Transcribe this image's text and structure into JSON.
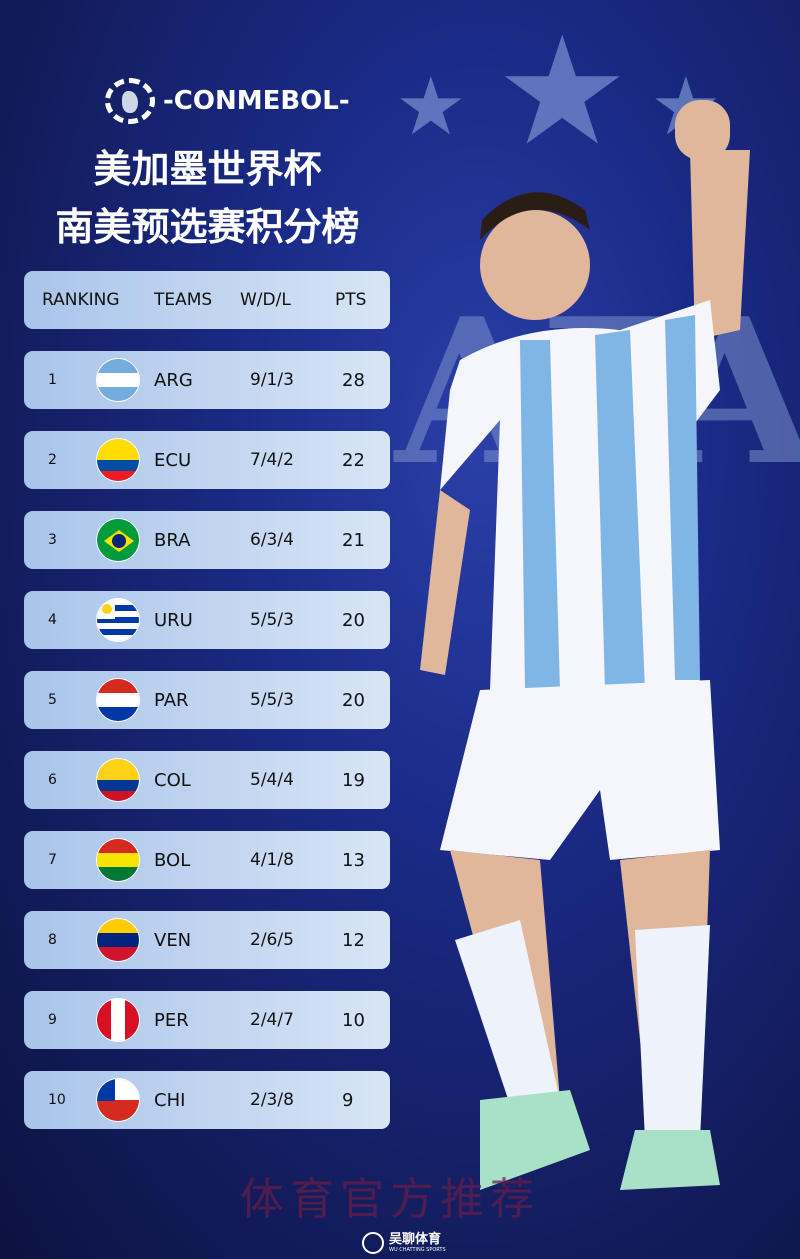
{
  "logo": {
    "text": "-CONMEBOL-"
  },
  "title": {
    "line1": "美加墨世界杯",
    "line2": "南美预选赛积分榜"
  },
  "header": {
    "ranking": "RANKING",
    "teams": "TEAMS",
    "wdl": "W/D/L",
    "pts": "PTS"
  },
  "rows": [
    {
      "rank": "1",
      "team": "ARG",
      "wdl": "9/1/3",
      "pts": "28",
      "flag": [
        "#74acdf",
        "#ffffff",
        "#74acdf"
      ]
    },
    {
      "rank": "2",
      "team": "ECU",
      "wdl": "7/4/2",
      "pts": "22",
      "flag": [
        "#ffdd00",
        "#ffdd00",
        "#034ea2",
        "#ed1c24"
      ]
    },
    {
      "rank": "3",
      "team": "BRA",
      "wdl": "6/3/4",
      "pts": "21",
      "flag": [
        "#009c3b"
      ]
    },
    {
      "rank": "4",
      "team": "URU",
      "wdl": "5/5/3",
      "pts": "20",
      "flag": [
        "#ffffff",
        "#0038a8",
        "#ffffff",
        "#0038a8",
        "#ffffff",
        "#0038a8",
        "#ffffff"
      ]
    },
    {
      "rank": "5",
      "team": "PAR",
      "wdl": "5/5/3",
      "pts": "20",
      "flag": [
        "#d52b1e",
        "#ffffff",
        "#0038a8"
      ]
    },
    {
      "rank": "6",
      "team": "COL",
      "wdl": "5/4/4",
      "pts": "19",
      "flag": [
        "#fcd116",
        "#fcd116",
        "#003893",
        "#ce1126"
      ]
    },
    {
      "rank": "7",
      "team": "BOL",
      "wdl": "4/1/8",
      "pts": "13",
      "flag": [
        "#d52b1e",
        "#f9e300",
        "#007934"
      ]
    },
    {
      "rank": "8",
      "team": "VEN",
      "wdl": "2/6/5",
      "pts": "12",
      "flag": [
        "#ffcc00",
        "#00247d",
        "#cf142b"
      ]
    },
    {
      "rank": "9",
      "team": "PER",
      "wdl": "2/4/7",
      "pts": "10",
      "flag": [
        "#d91023",
        "#ffffff",
        "#d91023"
      ]
    },
    {
      "rank": "10",
      "team": "CHI",
      "wdl": "2/3/8",
      "pts": "9",
      "flag": [
        "#ffffff",
        "#d52b1e"
      ]
    }
  ],
  "background": {
    "crest": "AFA",
    "watermark": "体育官方推荐"
  },
  "brand": {
    "name": "吴聊体育",
    "sub": "WU CHATTING SPORTS"
  }
}
